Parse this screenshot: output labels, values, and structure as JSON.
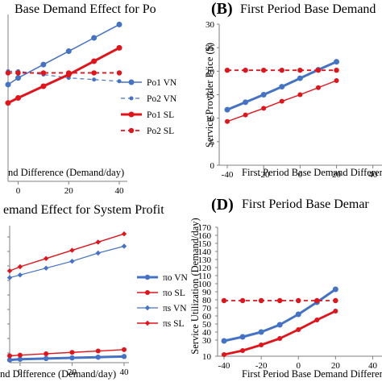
{
  "colors": {
    "blue": "#4472C4",
    "red": "#E0141B",
    "axis": "#808080",
    "text": "#000000"
  },
  "chart_data": [
    {
      "id": "A",
      "type": "line",
      "letter": "",
      "title": "Base Demand Effect for Po",
      "xlabel": "nd Difference (Demand/day)",
      "ylabel": "",
      "xlim": [
        -4,
        40
      ],
      "ylim": [
        0,
        100
      ],
      "xticks": [
        0,
        20,
        40
      ],
      "yticks": [],
      "x": [
        -4,
        0,
        10,
        20,
        30,
        40
      ],
      "series": [
        {
          "name": "Po1 VN",
          "color": "#4472C4",
          "style": "solid",
          "width": 1.5,
          "marker": "circle",
          "markerSize": 3.5,
          "values": [
            58,
            62,
            70,
            78,
            86,
            94
          ]
        },
        {
          "name": "Po2 VN",
          "color": "#4472C4",
          "style": "dashed",
          "width": 1.2,
          "marker": "circle",
          "markerSize": 2.5,
          "values": [
            66,
            66,
            64,
            62,
            61,
            60
          ]
        },
        {
          "name": "Po1 SL",
          "color": "#E0141B",
          "style": "solid",
          "width": 3,
          "marker": "circle",
          "markerSize": 3.5,
          "values": [
            47,
            50,
            57,
            64,
            72,
            80
          ]
        },
        {
          "name": "Po2 SL",
          "color": "#E0141B",
          "style": "dashed",
          "width": 1.8,
          "marker": "circle",
          "markerSize": 3.2,
          "values": [
            65,
            65,
            65,
            65,
            65,
            65
          ]
        }
      ],
      "legend": "right"
    },
    {
      "id": "B",
      "type": "line",
      "letter": "(B)",
      "title": "First Period Base Demand",
      "xlabel": "First Period Base Demand Difference",
      "ylabel": "Service Provider Price ($)",
      "xlim": [
        -40,
        45
      ],
      "ylim": [
        0,
        30
      ],
      "xticks": [
        -40,
        -20,
        0,
        20,
        40
      ],
      "yticks": [
        0,
        5,
        10,
        15,
        20,
        25,
        30
      ],
      "x": [
        -40,
        -30,
        -20,
        -10,
        0,
        10,
        20
      ],
      "series": [
        {
          "name": "",
          "color": "#4472C4",
          "style": "solid",
          "width": 3,
          "marker": "circle",
          "markerSize": 3.5,
          "values": [
            11.8,
            13.4,
            15.0,
            16.7,
            18.5,
            20.3,
            22.0
          ]
        },
        {
          "name": "",
          "color": "#E0141B",
          "style": "solid",
          "width": 1.4,
          "marker": "circle",
          "markerSize": 3,
          "values": [
            9.3,
            10.7,
            12.1,
            13.6,
            15.0,
            16.5,
            18.0
          ]
        },
        {
          "name": "",
          "color": "#E0141B",
          "style": "dashed",
          "width": 1.8,
          "marker": "circle",
          "markerSize": 3.2,
          "values": [
            20.2,
            20.2,
            20.2,
            20.2,
            20.2,
            20.2,
            20.2
          ]
        }
      ]
    },
    {
      "id": "C",
      "type": "line",
      "letter": "",
      "title": "emand Effect for System Profit",
      "xlabel": "nd Difference (Demand/day)",
      "ylabel": "",
      "xlim": [
        -4,
        40
      ],
      "ylim": [
        0,
        100
      ],
      "xticks": [
        0,
        20,
        40
      ],
      "yticks": [],
      "x": [
        -4,
        0,
        10,
        20,
        30,
        40
      ],
      "series": [
        {
          "name": "πo VN",
          "color": "#4472C4",
          "style": "solid",
          "width": 3,
          "marker": "circle",
          "markerSize": 3.2,
          "values": [
            2,
            2.5,
            3,
            3.5,
            4,
            4.5
          ]
        },
        {
          "name": "πo SL",
          "color": "#E0141B",
          "style": "solid",
          "width": 1.4,
          "marker": "circle",
          "markerSize": 3,
          "values": [
            5,
            5.5,
            6.5,
            7.5,
            8.5,
            9.5
          ]
        },
        {
          "name": "πs VN",
          "color": "#4472C4",
          "style": "solid",
          "width": 1.2,
          "marker": "diamond",
          "markerSize": 3.2,
          "values": [
            62,
            64,
            69,
            74,
            80,
            85
          ]
        },
        {
          "name": "πs SL",
          "color": "#E0141B",
          "style": "solid",
          "width": 1.4,
          "marker": "diamond",
          "markerSize": 3.2,
          "values": [
            67,
            70,
            76,
            82,
            88,
            94
          ]
        }
      ],
      "legend": "right"
    },
    {
      "id": "D",
      "type": "line",
      "letter": "(D)",
      "title": "First Period Base Demar",
      "xlabel": "First Period Base Demand Difference",
      "ylabel": "Service Utilization (Demand/day)",
      "xlim": [
        -40,
        45
      ],
      "ylim": [
        10,
        170
      ],
      "xticks": [
        -40,
        -20,
        0,
        20,
        40
      ],
      "yticks": [
        10,
        30,
        40,
        50,
        60,
        70,
        80,
        90,
        100,
        110,
        120,
        130,
        140,
        150,
        160,
        170
      ],
      "x": [
        -40,
        -30,
        -20,
        -10,
        0,
        10,
        20
      ],
      "series": [
        {
          "name": "",
          "color": "#4472C4",
          "style": "solid",
          "width": 3,
          "marker": "circle",
          "markerSize": 3.5,
          "values": [
            29,
            34,
            40,
            49,
            62,
            77,
            93
          ]
        },
        {
          "name": "",
          "color": "#E0141B",
          "style": "solid",
          "width": 2.8,
          "marker": "circle",
          "markerSize": 3,
          "values": [
            12,
            17,
            24,
            32,
            43,
            55,
            66
          ]
        },
        {
          "name": "",
          "color": "#E0141B",
          "style": "dashed",
          "width": 1.8,
          "marker": "circle",
          "markerSize": 3.2,
          "values": [
            79,
            79,
            79,
            79,
            79,
            79,
            79
          ]
        }
      ]
    }
  ]
}
